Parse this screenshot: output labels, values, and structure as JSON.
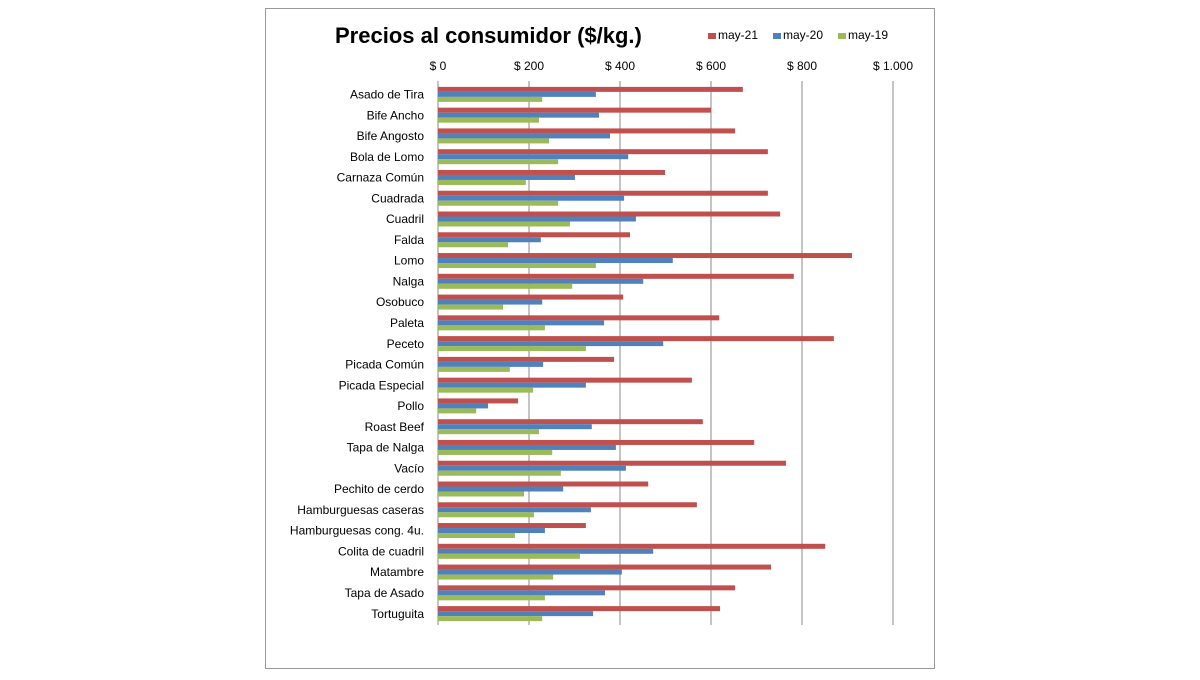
{
  "chart_data": {
    "type": "hbar",
    "title": "Precios al consumidor ($/kg.)",
    "categories": [
      "Asado de Tira",
      "Bife Ancho",
      "Bife Angosto",
      "Bola de Lomo",
      "Carnaza Común",
      "Cuadrada",
      "Cuadril",
      "Falda",
      "Lomo",
      "Nalga",
      "Osobuco",
      "Paleta",
      "Peceto",
      "Picada Común",
      "Picada Especial",
      "Pollo",
      "Roast Beef",
      "Tapa de Nalga",
      "Vacío",
      "Pechito de cerdo",
      "Hamburguesas caseras",
      "Hamburguesas cong. 4u.",
      "Colita de cuadril",
      "Matambre",
      "Tapa de Asado",
      "Tortuguita"
    ],
    "series": [
      {
        "name": "may-21",
        "color": "#c0504d",
        "values": [
          670,
          600,
          653,
          725,
          499,
          725,
          752,
          422,
          910,
          782,
          407,
          618,
          870,
          387,
          558,
          176,
          582,
          695,
          765,
          462,
          569,
          325,
          851,
          732,
          653,
          620
        ]
      },
      {
        "name": "may-20",
        "color": "#4f81bd",
        "values": [
          347,
          354,
          378,
          418,
          301,
          409,
          435,
          226,
          516,
          451,
          229,
          365,
          495,
          231,
          325,
          110,
          338,
          391,
          413,
          275,
          336,
          235,
          473,
          404,
          367,
          341
        ]
      },
      {
        "name": "may-19",
        "color": "#9bbb59",
        "values": [
          229,
          222,
          244,
          264,
          193,
          264,
          290,
          154,
          347,
          295,
          143,
          235,
          325,
          158,
          209,
          84,
          222,
          251,
          270,
          189,
          211,
          169,
          312,
          253,
          235,
          229
        ]
      }
    ],
    "xlim": [
      0,
      1000
    ],
    "xticks": [
      {
        "value": 0,
        "label": "$ 0"
      },
      {
        "value": 200,
        "label": "$ 200"
      },
      {
        "value": 400,
        "label": "$ 400"
      },
      {
        "value": 600,
        "label": "$ 600"
      },
      {
        "value": 800,
        "label": "$ 800"
      },
      {
        "value": 1000,
        "label": "$ 1.000"
      }
    ],
    "grid": true,
    "legend": "top-right"
  }
}
